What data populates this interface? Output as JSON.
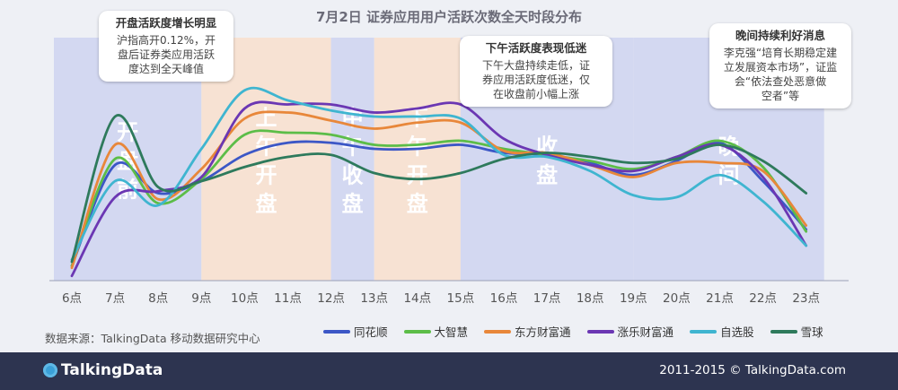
{
  "title": "7月2日 证券应用用户活跃次数全天时段分布",
  "chart_data": {
    "type": "line",
    "title": "7月2日 证券应用用户活跃次数全天时段分布",
    "x": [
      "6点",
      "7点",
      "8点",
      "9点",
      "10点",
      "11点",
      "12点",
      "13点",
      "14点",
      "15点",
      "16点",
      "17点",
      "18点",
      "19点",
      "20点",
      "21点",
      "22点",
      "23点"
    ],
    "ylim": [
      0,
      100
    ],
    "series": [
      {
        "name": "同花顺",
        "color": "#3c57c6",
        "values": [
          6,
          56,
          42,
          48,
          61,
          67,
          67,
          64,
          64,
          66,
          62,
          61,
          57,
          51,
          58,
          67,
          48,
          24
        ]
      },
      {
        "name": "大智慧",
        "color": "#5cbd48",
        "values": [
          6,
          59,
          37,
          49,
          71,
          72,
          71,
          66,
          66,
          68,
          64,
          61,
          58,
          54,
          60,
          68,
          55,
          23
        ]
      },
      {
        "name": "东方财富通",
        "color": "#e8873a",
        "values": [
          5,
          66,
          39,
          54,
          79,
          82,
          78,
          74,
          77,
          77,
          63,
          62,
          56,
          50,
          57,
          57,
          53,
          26
        ]
      },
      {
        "name": "涨乐财富通",
        "color": "#6b37b3",
        "values": [
          1,
          40,
          43,
          50,
          84,
          86,
          86,
          82,
          84,
          86,
          69,
          61,
          56,
          53,
          60,
          66,
          50,
          16
        ]
      },
      {
        "name": "自选股",
        "color": "#3fb5d0",
        "values": [
          9,
          48,
          36,
          64,
          93,
          88,
          83,
          80,
          80,
          79,
          61,
          60,
          53,
          41,
          40,
          51,
          38,
          16
        ]
      },
      {
        "name": "雪球",
        "color": "#2e7a5c",
        "values": [
          8,
          80,
          45,
          48,
          55,
          60,
          61,
          52,
          49,
          52,
          59,
          62,
          60,
          57,
          59,
          66,
          58,
          42
        ]
      }
    ],
    "time_bands": [
      {
        "label": "开盘前",
        "from": "6点",
        "to": "9点",
        "kind": "blue"
      },
      {
        "label": "上午开盘",
        "from": "9点",
        "to": "12点",
        "kind": "orange"
      },
      {
        "label": "中午收盘",
        "from": "12点",
        "to": "13点",
        "kind": "blue"
      },
      {
        "label": "下午开盘",
        "from": "13点",
        "to": "15点",
        "kind": "orange"
      },
      {
        "label": "收盘",
        "from": "15点",
        "to": "19点",
        "kind": "blue"
      },
      {
        "label": "晚间",
        "from": "19点",
        "to": "23点",
        "kind": "blue"
      }
    ],
    "colors": {
      "band_blue": "#d3d8f1",
      "band_orange": "#f7e2d3",
      "axis_line": "#9aa0b8"
    }
  },
  "callouts": [
    {
      "heading": "开盘活跃度增长明显",
      "body": "沪指高开0.12%，开\n盘后证券类应用活跃\n度达到全天峰值"
    },
    {
      "heading": "下午活跃度表现低迷",
      "body": "下午大盘持续走低，证\n券应用活跃度低迷，仅\n在收盘前小幅上涨"
    },
    {
      "heading": "晚间持续利好消息",
      "body": "李克强“培育长期稳定建\n立发展资本市场”，证监\n会“依法查处恶意做\n空者”等"
    }
  ],
  "source": "数据来源：TalkingData 移动数据研究中心",
  "footer": {
    "brand": "TalkingData",
    "copyright": "2011-2015 © TalkingData.com"
  }
}
